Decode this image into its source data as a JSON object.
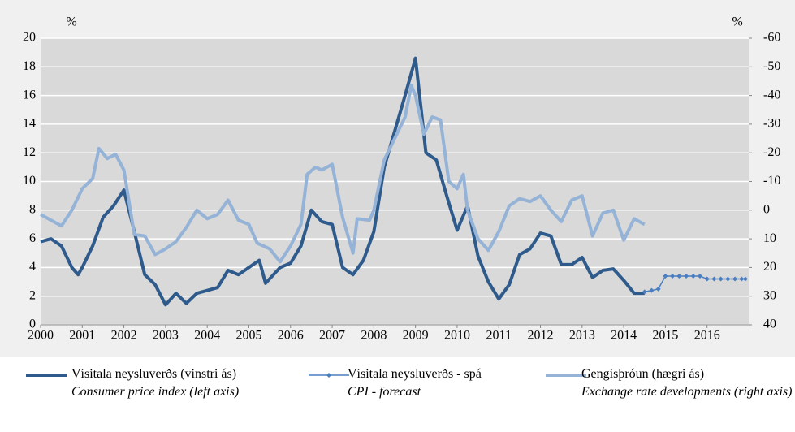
{
  "chart_data": {
    "type": "line",
    "ylabel": "%",
    "y2label": "%",
    "xlim": [
      2000,
      2017
    ],
    "xticks": [
      2000,
      2001,
      2002,
      2003,
      2004,
      2005,
      2006,
      2007,
      2008,
      2009,
      2010,
      2011,
      2012,
      2013,
      2014,
      2015,
      2016
    ],
    "ylim": [
      0,
      20
    ],
    "yticks": [
      0,
      2,
      4,
      6,
      8,
      10,
      12,
      14,
      16,
      18,
      20
    ],
    "y2lim": [
      40,
      -60
    ],
    "y2ticks": [
      40,
      30,
      20,
      10,
      0,
      -10,
      -20,
      -30,
      -40,
      -50,
      -60
    ],
    "grid": true,
    "series": [
      {
        "name": "Vísitala neysluverðs (vinstri ás)",
        "subtitle": "Consumer price index (left axis)",
        "color": "#2f5b8c",
        "width": 4,
        "x": [
          2000.0,
          2000.25,
          2000.5,
          2000.75,
          2000.9,
          2001.0,
          2001.25,
          2001.5,
          2001.75,
          2002.0,
          2002.25,
          2002.5,
          2002.75,
          2003.0,
          2003.25,
          2003.5,
          2003.75,
          2004.0,
          2004.25,
          2004.5,
          2004.75,
          2005.0,
          2005.25,
          2005.4,
          2005.75,
          2006.0,
          2006.25,
          2006.5,
          2006.75,
          2007.0,
          2007.25,
          2007.5,
          2007.75,
          2008.0,
          2008.25,
          2008.5,
          2008.75,
          2009.0,
          2009.25,
          2009.5,
          2009.75,
          2010.0,
          2010.25,
          2010.5,
          2010.75,
          2011.0,
          2011.25,
          2011.5,
          2011.75,
          2012.0,
          2012.25,
          2012.5,
          2012.75,
          2013.0,
          2013.25,
          2013.5,
          2013.75,
          2014.0,
          2014.25,
          2014.5
        ],
        "values": [
          5.8,
          6.0,
          5.5,
          4.0,
          3.5,
          4.0,
          5.5,
          7.5,
          8.3,
          9.4,
          6.5,
          3.5,
          2.8,
          1.4,
          2.2,
          1.5,
          2.2,
          2.4,
          2.6,
          3.8,
          3.5,
          4.0,
          4.5,
          2.9,
          4.0,
          4.3,
          5.5,
          8.0,
          7.2,
          7.0,
          4.0,
          3.5,
          4.5,
          6.5,
          11.0,
          13.5,
          16.0,
          18.6,
          12.0,
          11.5,
          9.0,
          6.6,
          8.3,
          4.8,
          3.0,
          1.8,
          2.8,
          4.9,
          5.3,
          6.4,
          6.2,
          4.2,
          4.2,
          4.7,
          3.3,
          3.8,
          3.9,
          3.1,
          2.2,
          2.2
        ]
      },
      {
        "name": "Vísitala neysluverðs - spá",
        "subtitle": "CPI - forecast",
        "color": "#4a7ec0",
        "width": 1.5,
        "marker": "diamond",
        "x": [
          2014.5,
          2014.67,
          2014.83,
          2015.0,
          2015.17,
          2015.33,
          2015.5,
          2015.67,
          2015.83,
          2016.0,
          2016.17,
          2016.33,
          2016.5,
          2016.67,
          2016.83,
          2016.92
        ],
        "values": [
          2.3,
          2.4,
          2.5,
          3.4,
          3.4,
          3.4,
          3.4,
          3.4,
          3.4,
          3.2,
          3.2,
          3.2,
          3.2,
          3.2,
          3.2,
          3.2
        ]
      },
      {
        "name": "Gengisþróun (hægri ás)",
        "subtitle": "Exchange rate developments (right axis)",
        "color": "#95b3d7",
        "width": 4,
        "axis": "y2",
        "x": [
          2000.0,
          2000.5,
          2000.75,
          2001.0,
          2001.25,
          2001.4,
          2001.6,
          2001.8,
          2002.0,
          2002.25,
          2002.5,
          2002.75,
          2003.0,
          2003.25,
          2003.5,
          2003.75,
          2004.0,
          2004.25,
          2004.5,
          2004.75,
          2005.0,
          2005.2,
          2005.5,
          2005.75,
          2006.0,
          2006.25,
          2006.4,
          2006.6,
          2006.75,
          2007.0,
          2007.25,
          2007.5,
          2007.6,
          2007.9,
          2008.0,
          2008.25,
          2008.5,
          2008.75,
          2008.9,
          2009.0,
          2009.2,
          2009.4,
          2009.6,
          2009.8,
          2010.0,
          2010.15,
          2010.25,
          2010.5,
          2010.75,
          2011.0,
          2011.25,
          2011.5,
          2011.75,
          2012.0,
          2012.25,
          2012.5,
          2012.75,
          2013.0,
          2013.25,
          2013.5,
          2013.75,
          2014.0,
          2014.25,
          2014.5
        ],
        "values": [
          1.5,
          5.5,
          0,
          -7.5,
          -11,
          -21.5,
          -18,
          -19.5,
          -14,
          8.5,
          9,
          15.5,
          13.5,
          11,
          6,
          0,
          3,
          1.5,
          -3.5,
          3.5,
          5,
          11.5,
          13.5,
          18,
          12.5,
          5,
          -12.5,
          -15,
          -14,
          -16,
          2.5,
          15,
          3,
          3.5,
          0,
          -17.5,
          -25,
          -32.5,
          -43.5,
          -40,
          -26.5,
          -32.5,
          -31.5,
          -10,
          -7.5,
          -12.5,
          0,
          10,
          14,
          7.5,
          -1.5,
          -4,
          -3,
          -5,
          0,
          4,
          -3.5,
          -5,
          9,
          1,
          0,
          10.5,
          3,
          5
        ]
      }
    ]
  }
}
